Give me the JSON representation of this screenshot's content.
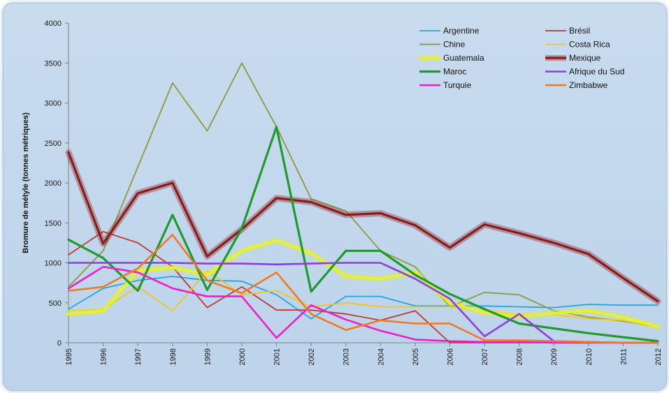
{
  "chart_data": {
    "type": "line",
    "title": "",
    "xlabel": "",
    "ylabel": "Bromure de métyle (tonnes métriques)",
    "x": [
      1995,
      1996,
      1997,
      1998,
      1999,
      2000,
      2001,
      2002,
      2003,
      2004,
      2005,
      2006,
      2007,
      2008,
      2009,
      2010,
      2011,
      2012
    ],
    "ylim": [
      0,
      4000
    ],
    "yticks": [
      0,
      500,
      1000,
      1500,
      2000,
      2500,
      3000,
      3500,
      4000
    ],
    "grid": false,
    "legend_position": "top-right",
    "series": [
      {
        "name": "Argentine",
        "color": "#29a3e0",
        "glow": false,
        "width": 1.8,
        "values": [
          420,
          680,
          780,
          830,
          780,
          770,
          600,
          300,
          580,
          580,
          460,
          460,
          460,
          450,
          440,
          480,
          470,
          470
        ]
      },
      {
        "name": "Brésil",
        "color": "#c0392b",
        "glow": false,
        "width": 1.8,
        "values": [
          1100,
          1390,
          1250,
          950,
          440,
          700,
          410,
          410,
          360,
          280,
          400,
          0,
          0,
          0,
          0,
          0,
          0,
          0
        ]
      },
      {
        "name": "Chine",
        "color": "#8a9a3c",
        "glow": false,
        "width": 1.8,
        "values": [
          700,
          1150,
          2200,
          3250,
          2650,
          3500,
          2700,
          1800,
          1650,
          1150,
          950,
          450,
          630,
          600,
          400,
          320,
          270,
          200
        ]
      },
      {
        "name": "Costa Rica",
        "color": "#f5c518",
        "glow": false,
        "width": 1.8,
        "values": [
          400,
          420,
          700,
          400,
          900,
          600,
          650,
          450,
          500,
          450,
          450,
          450,
          400,
          350,
          350,
          300,
          280,
          200
        ]
      },
      {
        "name": "Guatemala",
        "color": "#e6f22c",
        "glow": true,
        "width": 3.5,
        "values": [
          360,
          400,
          900,
          940,
          850,
          1150,
          1280,
          1120,
          830,
          800,
          880,
          500,
          380,
          330,
          370,
          400,
          320,
          200
        ]
      },
      {
        "name": "Mexique",
        "color": "#8b1a1a",
        "glow": true,
        "width": 3.2,
        "values": [
          2380,
          1240,
          1870,
          2000,
          1080,
          1420,
          1810,
          1760,
          1600,
          1620,
          1470,
          1190,
          1480,
          1370,
          1250,
          1110,
          810,
          520
        ]
      },
      {
        "name": "Maroc",
        "color": "#1e9a2e",
        "glow": false,
        "width": 3.2,
        "values": [
          1290,
          1060,
          650,
          1600,
          660,
          1430,
          2700,
          640,
          1150,
          1150,
          850,
          610,
          420,
          240,
          180,
          120,
          70,
          20
        ]
      },
      {
        "name": "Afrique du Sud",
        "color": "#8e3dde",
        "glow": false,
        "width": 2.6,
        "values": [
          1000,
          1000,
          1000,
          1000,
          990,
          990,
          980,
          990,
          1000,
          1000,
          800,
          550,
          80,
          360,
          20,
          10,
          0,
          0
        ]
      },
      {
        "name": "Turquie",
        "color": "#ee1ecf",
        "glow": false,
        "width": 2.6,
        "values": [
          680,
          950,
          880,
          680,
          580,
          580,
          60,
          470,
          290,
          150,
          40,
          20,
          10,
          10,
          0,
          0,
          0,
          0
        ]
      },
      {
        "name": "Zimbabwe",
        "color": "#f07a22",
        "glow": false,
        "width": 2.6,
        "values": [
          650,
          700,
          930,
          1350,
          780,
          620,
          880,
          360,
          160,
          280,
          240,
          240,
          30,
          30,
          20,
          10,
          0,
          0
        ]
      }
    ]
  }
}
